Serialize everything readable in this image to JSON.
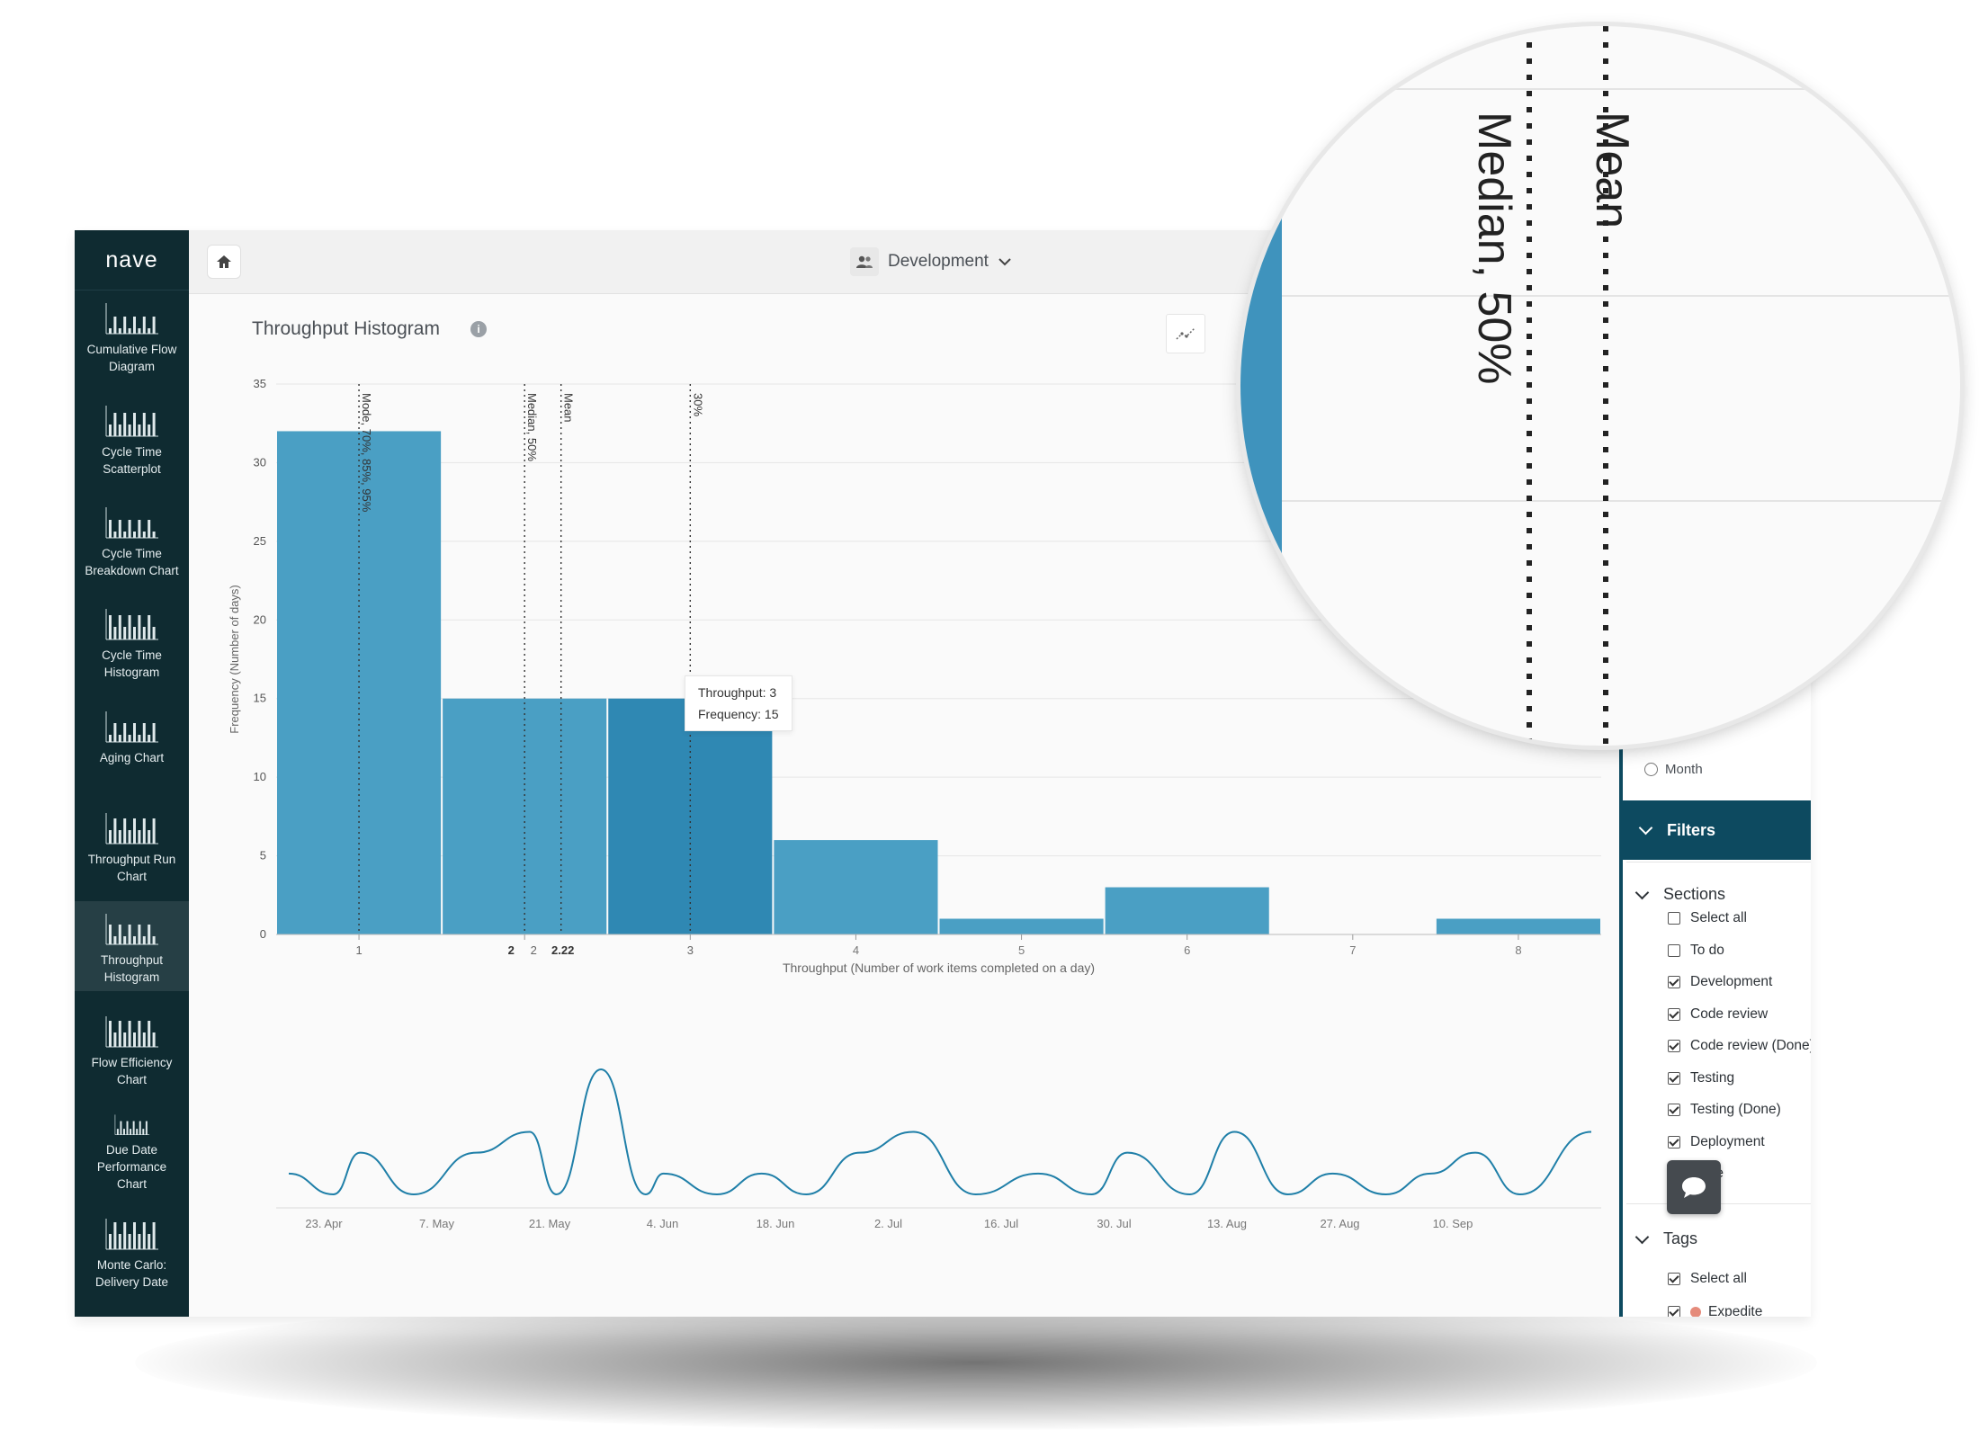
{
  "app": {
    "logo": "nave"
  },
  "nav": [
    {
      "label_lines": [
        "Cumulative Flow",
        "Diagram"
      ]
    },
    {
      "label_lines": [
        "Cycle Time",
        "Scatterplot"
      ]
    },
    {
      "label_lines": [
        "Cycle Time",
        "Breakdown Chart"
      ]
    },
    {
      "label_lines": [
        "Cycle Time",
        "Histogram"
      ]
    },
    {
      "label_lines": [
        "Aging Chart"
      ]
    },
    {
      "label_lines": [
        "Throughput Run",
        "Chart"
      ]
    },
    {
      "label_lines": [
        "Throughput",
        "Histogram"
      ],
      "active": true
    },
    {
      "label_lines": [
        "Flow Efficiency",
        "Chart"
      ]
    },
    {
      "label_lines": [
        "Due Date",
        "Performance",
        "Chart"
      ]
    },
    {
      "label_lines": [
        "Monte Carlo:",
        "Delivery Date"
      ]
    }
  ],
  "header": {
    "team": "Development",
    "icons": [
      "home-icon",
      "team-icon",
      "chevron-down-icon"
    ]
  },
  "chart_title": "Throughput Histogram",
  "tooltip": {
    "line1": "Throughput: 3",
    "line2": "Frequency: 15"
  },
  "chart_data": [
    {
      "type": "bar",
      "title": "Throughput Histogram",
      "xlabel": "Throughput (Number of work items completed on a day)",
      "ylabel": "Frequency (Number of days)",
      "categories": [
        "1",
        "2",
        "3",
        "4",
        "5",
        "6",
        "7",
        "8"
      ],
      "values": [
        32,
        15,
        15,
        6,
        1,
        3,
        0,
        1
      ],
      "highlighted_category": "3",
      "ylim": [
        0,
        35
      ],
      "yticks": [
        0,
        5,
        10,
        15,
        20,
        25,
        30,
        35
      ],
      "grid": true,
      "color": "#4a9fc4",
      "highlight_color": "#2f88b3",
      "reference_lines": [
        {
          "x": 1,
          "label": "Mode, 70%, 85%, 95%"
        },
        {
          "x": 2,
          "label": "Median, 50%",
          "tick": "2"
        },
        {
          "x": 2.22,
          "label": "Mean",
          "tick": "2.22"
        },
        {
          "x": 3,
          "label": "30%"
        }
      ]
    },
    {
      "type": "line",
      "title": "",
      "x_ticks": [
        "23. Apr",
        "7. May",
        "21. May",
        "4. Jun",
        "18. Jun",
        "2. Jul",
        "16. Jul",
        "30. Jul",
        "13. Aug",
        "27. Aug",
        "10. Sep"
      ],
      "x": [
        0,
        5,
        8,
        14,
        21,
        27,
        30,
        35,
        40,
        42,
        48,
        53,
        58,
        64,
        70,
        77,
        84,
        90,
        94,
        101,
        106,
        112,
        117,
        123,
        128,
        133,
        138,
        146
      ],
      "y": [
        1,
        0,
        2,
        0,
        2,
        3,
        0,
        6,
        0,
        1,
        0,
        1,
        0,
        2,
        3,
        0,
        1,
        0,
        2,
        0,
        3,
        0,
        1,
        0,
        1,
        2,
        0,
        3
      ],
      "color": "#1f7fa8"
    }
  ],
  "magnifier": {
    "labels": [
      "Median, 50%",
      "Mean"
    ]
  },
  "panel": {
    "month_label": "Month",
    "filters_label": "Filters",
    "sections_label": "Sections",
    "sections": [
      {
        "label": "Select all",
        "checked": false
      },
      {
        "label": "To do",
        "checked": false
      },
      {
        "label": "Development",
        "checked": true
      },
      {
        "label": "Code review",
        "checked": true
      },
      {
        "label": "Code review (Done)",
        "checked": true
      },
      {
        "label": "Testing",
        "checked": true
      },
      {
        "label": "Testing (Done)",
        "checked": true
      },
      {
        "label": "Deployment",
        "checked": true
      },
      {
        "label": "Done",
        "checked": true
      }
    ],
    "tags_label": "Tags",
    "tags": [
      {
        "label": "Select all",
        "checked": true
      },
      {
        "label": "Expedite",
        "checked": true,
        "color": "#e58b7b"
      }
    ]
  }
}
